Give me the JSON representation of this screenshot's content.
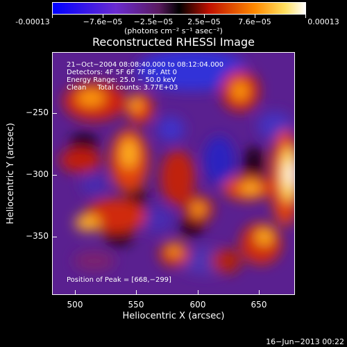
{
  "colorbar": {
    "labels": [
      "-0.00013",
      "−7.6e−05",
      "−2.5e−05",
      "2.5e−05",
      "7.6e−05",
      "0.00013"
    ],
    "units": "(photons cm⁻² s⁻¹ asec⁻²)"
  },
  "title": "Reconstructed RHESSI Image",
  "info": {
    "line1": "21−Oct−2004 08:08:40.000 to 08:12:04.000",
    "line2": "Detectors: 4F 5F 6F 7F 8F, Att 0",
    "line3": "Energy Range: 25.0 − 50.0 keV",
    "line4": "Clean     Total counts: 3.77E+03",
    "peak": "Position of Peak = [668,−299]"
  },
  "axes": {
    "xlabel": "Heliocentric X (arcsec)",
    "ylabel": "Heliocentric Y (arcsec)",
    "xticks": [
      "500",
      "550",
      "600",
      "650"
    ],
    "yticks": [
      "−250",
      "−300",
      "−350"
    ]
  },
  "footer": "16−Jun−2013 00:22",
  "colors": {
    "cmap": [
      "#0000ff",
      "#6a2bd0",
      "#7a2a8a",
      "#000000",
      "#d01a00",
      "#ff8a00",
      "#ffffff"
    ]
  }
}
